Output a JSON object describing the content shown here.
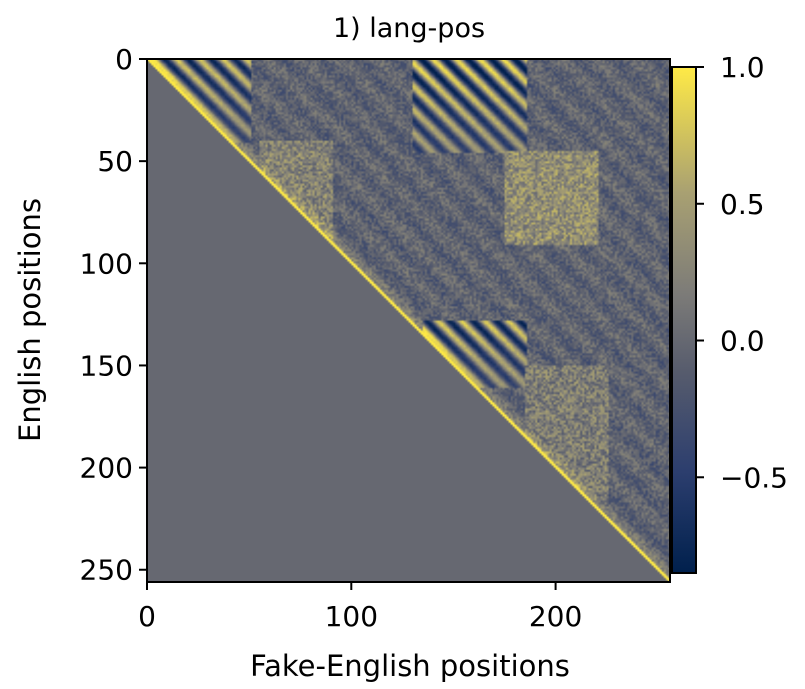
{
  "chart_data": {
    "type": "heatmap",
    "title": "1) lang-pos",
    "xlabel": "Fake-English positions",
    "ylabel": "English positions",
    "x_ticks": [
      0,
      100,
      200
    ],
    "y_ticks": [
      0,
      50,
      100,
      150,
      200,
      250
    ],
    "xlim": [
      0,
      256
    ],
    "ylim": [
      256,
      0
    ],
    "colormap": "cividis",
    "color_range": [
      -0.85,
      1.0
    ],
    "colorbar_ticks": [
      1.0,
      0.5,
      0.0,
      -0.5
    ],
    "colorbar_tick_labels": [
      "1.0",
      "0.5",
      "0.0",
      "−0.5"
    ],
    "masked_region": "lower-triangle",
    "masked_value": 0.0,
    "diagonal_value": 1.0,
    "features": [
      {
        "kind": "diagonal-stripes",
        "rows": [
          0,
          40
        ],
        "cols": [
          0,
          50
        ],
        "amplitude": 0.8
      },
      {
        "kind": "diagonal-stripes",
        "rows": [
          0,
          45
        ],
        "cols": [
          130,
          185
        ],
        "amplitude": 0.95
      },
      {
        "kind": "diagonal-stripes",
        "rows": [
          128,
          160
        ],
        "cols": [
          135,
          185
        ],
        "amplitude": 0.85
      },
      {
        "kind": "bright-block",
        "rows": [
          40,
          90
        ],
        "cols": [
          55,
          90
        ],
        "mean": 0.25
      },
      {
        "kind": "bright-block",
        "rows": [
          45,
          90
        ],
        "cols": [
          175,
          220
        ],
        "mean": 0.35
      },
      {
        "kind": "bright-block",
        "rows": [
          150,
          215
        ],
        "cols": [
          185,
          225
        ],
        "mean": 0.2
      }
    ]
  }
}
